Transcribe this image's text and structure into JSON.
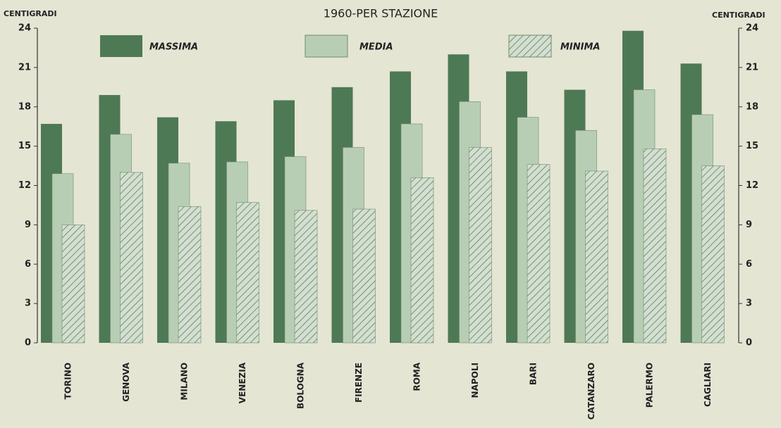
{
  "chart_data": {
    "type": "bar",
    "title": "1960-PER STAZIONE",
    "y_label": "CENTIGRADI",
    "y2_label": "CENTIGRADI",
    "categories": [
      "TORINO",
      "GENOVA",
      "MILANO",
      "VENEZIA",
      "BOLOGNA",
      "FIRENZE",
      "ROMA",
      "NAPOLI",
      "BARI",
      "CATANZARO",
      "PALERMO",
      "CAGLIARI"
    ],
    "series": [
      {
        "name": "MASSIMA",
        "color": "#4e7955",
        "values": [
          16.7,
          18.9,
          17.2,
          16.9,
          18.5,
          19.5,
          20.7,
          22.0,
          20.7,
          19.3,
          23.8,
          21.3
        ]
      },
      {
        "name": "MEDIA",
        "color": "#b8ceb4",
        "values": [
          12.9,
          15.9,
          13.7,
          13.8,
          14.2,
          14.9,
          16.7,
          18.4,
          17.2,
          16.2,
          19.3,
          17.4
        ]
      },
      {
        "name": "MINIMA",
        "color": "#9fb89b",
        "values": [
          9.0,
          13.0,
          10.4,
          10.7,
          10.1,
          10.2,
          12.6,
          14.9,
          13.6,
          13.1,
          14.8,
          13.5
        ]
      }
    ],
    "ylim": [
      0,
      24
    ],
    "yticks": [
      0,
      3,
      6,
      9,
      12,
      15,
      18,
      21,
      24
    ],
    "y2lim": [
      0,
      24
    ],
    "y2ticks": [
      0,
      3,
      6,
      9,
      12,
      15,
      18,
      21,
      24
    ]
  }
}
